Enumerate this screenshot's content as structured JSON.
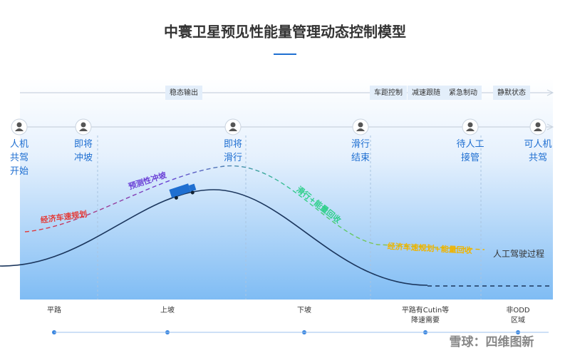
{
  "title": "中寰卫星预见性能量管理动态控制模型",
  "phases": [
    "稳态输出",
    "车距控制",
    "减速跟随",
    "紧急制动",
    "静默状态"
  ],
  "nodes": [
    {
      "label": [
        "人机",
        "共驾",
        "开始"
      ]
    },
    {
      "label": [
        "即将",
        "冲坡"
      ]
    },
    {
      "label": [
        "即将",
        "滑行"
      ]
    },
    {
      "label": [
        "滑行",
        "结束"
      ]
    },
    {
      "label": [
        "待人工",
        "接管"
      ]
    },
    {
      "label": [
        "可人机",
        "共驾"
      ]
    }
  ],
  "annotations": [
    "经济车速规划",
    "预测性冲坡",
    "滑行+能量回收",
    "经济车速规划+能量回收",
    "人工驾驶过程"
  ],
  "segments": [
    {
      "label": [
        "平路"
      ]
    },
    {
      "label": [
        "上坡"
      ]
    },
    {
      "label": [
        "下坡"
      ]
    },
    {
      "label": [
        "平路有Cutin等",
        "降速需要"
      ]
    },
    {
      "label": [
        "非ODD",
        "区域"
      ]
    }
  ],
  "watermark": "雪球：四维图新"
}
